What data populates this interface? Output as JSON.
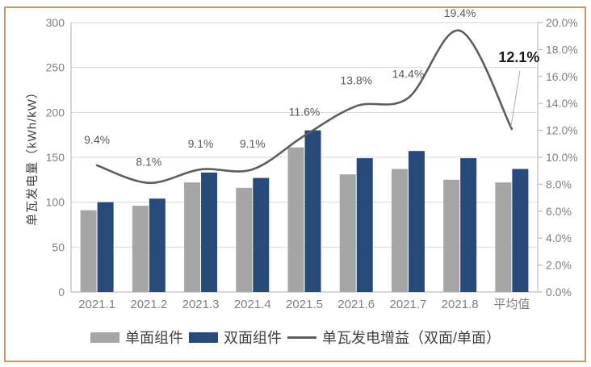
{
  "frame": {
    "border_color": "#C9976B",
    "background": "#FFFFFF"
  },
  "chart_data": {
    "type": "combo bar+line",
    "categories": [
      "2021.1",
      "2021.2",
      "2021.3",
      "2021.4",
      "2021.5",
      "2021.6",
      "2021.7",
      "2021.8",
      "平均值"
    ],
    "series": [
      {
        "name": "单面组件",
        "type": "bar",
        "axis": "left",
        "color": "#A6A6A6",
        "values": [
          91,
          96,
          122,
          116,
          161,
          131,
          137,
          125,
          122
        ]
      },
      {
        "name": "双面组件",
        "type": "bar",
        "axis": "left",
        "color": "#274A7B",
        "values": [
          100,
          104,
          133,
          127,
          180,
          149,
          157,
          149,
          137
        ]
      },
      {
        "name": "单瓦发电增益（双面/单面）",
        "type": "line",
        "axis": "right",
        "color": "#5C5F5E",
        "values": [
          9.4,
          8.1,
          9.1,
          9.1,
          11.6,
          13.8,
          14.4,
          19.4,
          12.1
        ],
        "labels": [
          "9.4%",
          "8.1%",
          "9.1%",
          "9.1%",
          "11.6%",
          "13.8%",
          "14.4%",
          "19.4%",
          "12.1%"
        ]
      }
    ],
    "left_axis": {
      "title": "单瓦发电量（kWh/kW）",
      "min": 0,
      "max": 300,
      "step": 50,
      "tick_labels": [
        "0",
        "50",
        "100",
        "150",
        "200",
        "250",
        "300"
      ]
    },
    "right_axis": {
      "min": 0,
      "max": 20,
      "step": 2,
      "tick_labels": [
        "0.0%",
        "2.0%",
        "4.0%",
        "6.0%",
        "8.0%",
        "10.0%",
        "12.0%",
        "14.0%",
        "16.0%",
        "18.0%",
        "20.0%"
      ]
    },
    "grid": {
      "horizontal": true,
      "color": "#D9D9D9"
    },
    "legend": {
      "position": "bottom"
    },
    "highlight_label": {
      "text": "12.1%",
      "bold": true,
      "has_leader_line": true
    }
  },
  "colors": {
    "axis_line": "#BFBFBF",
    "tick_text": "#7F7F7F",
    "data_label_text": "#595959",
    "highlight_text": "#1A1A1A",
    "leader_line": "#ADADAD",
    "legend_text": "#3F3F3F"
  }
}
